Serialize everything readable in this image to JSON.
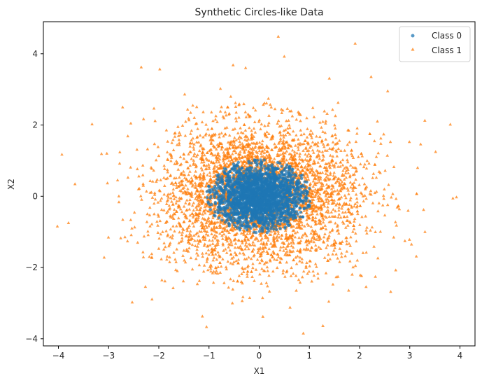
{
  "chart_data": {
    "type": "scatter",
    "title": "Synthetic Circles-like Data",
    "xlabel": "X1",
    "ylabel": "X2",
    "xlim": [
      -4.3,
      4.3
    ],
    "ylim": [
      -4.2,
      4.9
    ],
    "xticks": [
      -4,
      -3,
      -2,
      -1,
      0,
      1,
      2,
      3,
      4
    ],
    "yticks": [
      -4,
      -2,
      0,
      2,
      4
    ],
    "grid": false,
    "legend": "top-right",
    "series": [
      {
        "name": "Class 1",
        "marker": "triangle",
        "color": "#ff7f0e",
        "distribution": {
          "center_x": 0.0,
          "center_y": 0.0,
          "radial_sd": 1.0,
          "inner_radius": 0.45
        },
        "count": 3800,
        "points": [
          [
            0.38,
            4.48
          ],
          [
            0.5,
            3.92
          ],
          [
            -0.52,
            3.68
          ],
          [
            -0.27,
            3.6
          ],
          [
            -2.35,
            3.62
          ],
          [
            2.23,
            3.35
          ],
          [
            -3.93,
            1.17
          ],
          [
            -3.33,
            2.02
          ],
          [
            3.93,
            -0.03
          ],
          [
            3.86,
            -0.06
          ],
          [
            -3.8,
            -0.75
          ],
          [
            -3.67,
            0.34
          ],
          [
            1.27,
            -3.64
          ],
          [
            0.88,
            -3.85
          ],
          [
            -1.05,
            -3.67
          ],
          [
            2.62,
            -2.68
          ],
          [
            -2.53,
            -2.98
          ],
          [
            3.13,
            -1.69
          ],
          [
            3.3,
            2.12
          ],
          [
            2.56,
            2.95
          ]
        ]
      },
      {
        "name": "Class 0",
        "marker": "circle",
        "color": "#1f77b4",
        "distribution": {
          "center_x": 0.0,
          "center_y": 0.0,
          "radial_sd": 0.45
        },
        "count": 2200,
        "points": [
          [
            0.0,
            0.0
          ],
          [
            0.3,
            0.2
          ],
          [
            -0.4,
            -0.3
          ],
          [
            0.6,
            -0.1
          ],
          [
            -0.2,
            0.5
          ]
        ]
      }
    ],
    "legend_entries": [
      {
        "label": "Class 0",
        "marker": "circle",
        "color": "#1f77b4"
      },
      {
        "label": "Class 1",
        "marker": "triangle",
        "color": "#ff7f0e"
      }
    ]
  }
}
